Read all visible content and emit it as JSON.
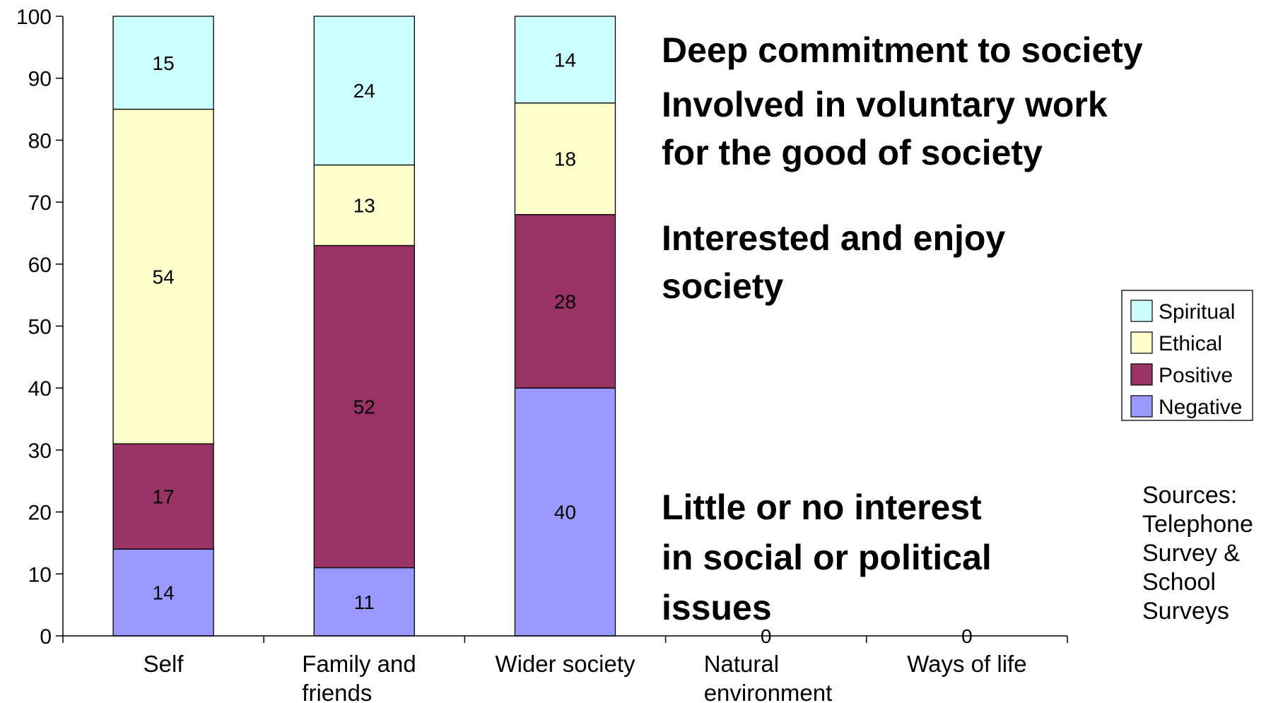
{
  "chart_data": {
    "type": "bar",
    "stacked": true,
    "categories": [
      "Self",
      "Family and\nfriends",
      "Wider society",
      "Natural\nenvironment",
      "Ways of life"
    ],
    "series": [
      {
        "name": "Negative",
        "color": "#9999ff",
        "values": [
          14,
          11,
          40,
          0,
          0
        ]
      },
      {
        "name": "Positive",
        "color": "#993366",
        "values": [
          17,
          52,
          28,
          null,
          null
        ]
      },
      {
        "name": "Ethical",
        "color": "#ffffcc",
        "values": [
          54,
          13,
          18,
          null,
          null
        ]
      },
      {
        "name": "Spiritual",
        "color": "#ccffff",
        "values": [
          15,
          24,
          14,
          null,
          null
        ]
      }
    ],
    "ylim": [
      0,
      100
    ],
    "yticks": [
      0,
      10,
      20,
      30,
      40,
      50,
      60,
      70,
      80,
      90,
      100
    ],
    "legend_position": "right",
    "grid": false
  },
  "annotations": {
    "deep": "Deep commitment to society",
    "voluntary": "Involved in voluntary work\nfor the good of society",
    "interested": "Interested and enjoy\nsociety",
    "little": "Little or no interest\nin social or political\nissues"
  },
  "sources": "Sources:\nTelephone\nSurvey &\nSchool\nSurveys"
}
